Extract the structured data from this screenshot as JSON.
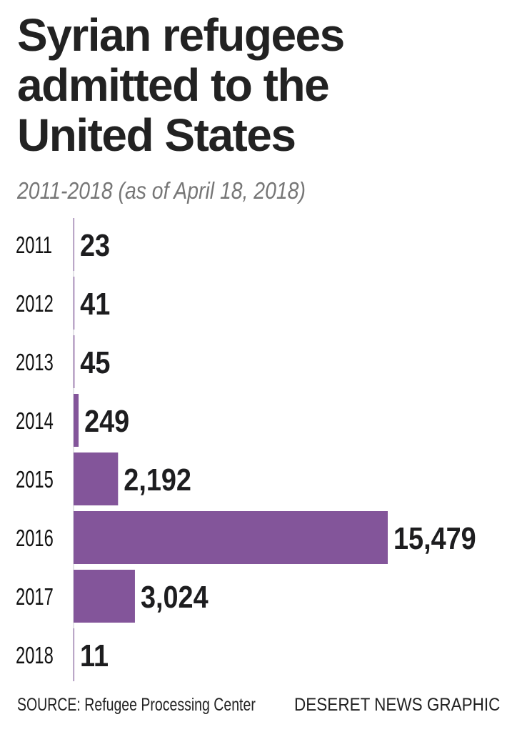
{
  "chart_data": {
    "type": "bar",
    "orientation": "horizontal",
    "title": "Syrian refugees admitted to the United States",
    "title_lines": [
      "Syrian refugees",
      "admitted to the",
      "United States"
    ],
    "subtitle": "2011-2018 (as of April 18, 2018)",
    "categories": [
      "2011",
      "2012",
      "2013",
      "2014",
      "2015",
      "2016",
      "2017",
      "2018"
    ],
    "values": [
      23,
      41,
      45,
      249,
      2192,
      15479,
      3024,
      11
    ],
    "value_labels": [
      "23",
      "41",
      "45",
      "249",
      "2,192",
      "15,479",
      "3,024",
      "11"
    ],
    "xlabel": "",
    "ylabel": "",
    "xlim": [
      0,
      15479
    ],
    "grid": false,
    "bar_color": "#83559a",
    "source": "SOURCE: Refugee Processing Center",
    "credit": "DESERET NEWS GRAPHIC"
  }
}
